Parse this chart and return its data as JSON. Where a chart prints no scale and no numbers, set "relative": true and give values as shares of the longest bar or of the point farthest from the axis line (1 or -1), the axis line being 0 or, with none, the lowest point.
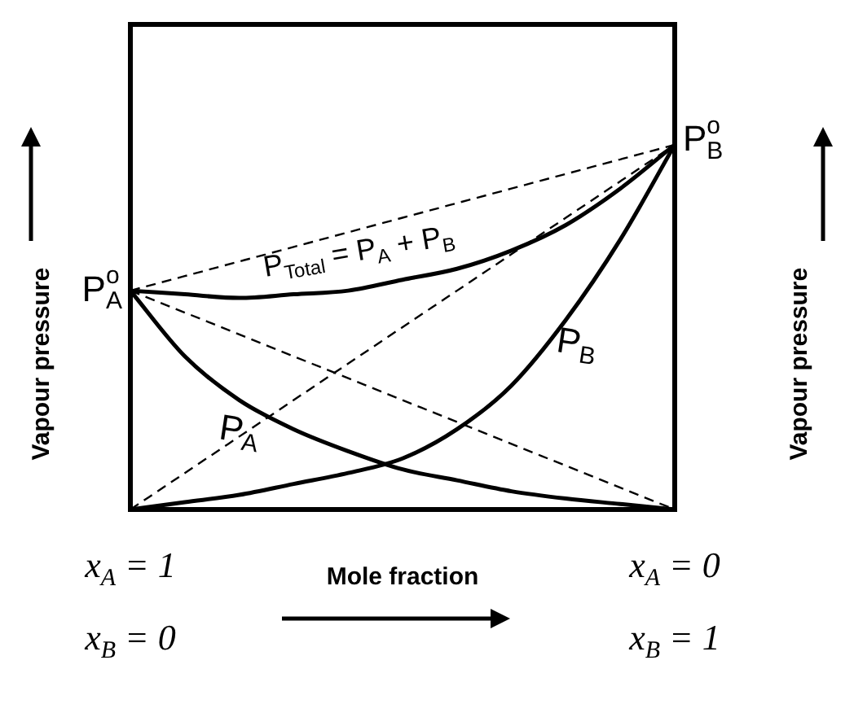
{
  "chart_data": {
    "type": "line",
    "relative": true,
    "xlabel": "Mole fraction",
    "ylabel": "Vapour pressure",
    "y2label": "Vapour pressure",
    "categories": [
      null,
      null,
      null,
      null,
      null,
      null,
      null,
      null,
      null,
      null,
      null
    ],
    "marker": "none",
    "legend": false,
    "series": [
      {
        "color": "#000000",
        "line_style": "solid",
        "values": [
          0.6,
          0.59,
          0.58,
          0.59,
          0.6,
          0.63,
          0.66,
          0.71,
          0.78,
          0.88,
          1
        ]
      },
      {
        "color": "#000000",
        "line_style": "solid",
        "values": [
          0.6,
          0.42,
          0.3,
          0.22,
          0.16,
          0.11,
          0.08,
          0.05,
          0.03,
          0.015,
          0
        ]
      },
      {
        "color": "#000000",
        "line_style": "solid",
        "values": [
          0,
          0.02,
          0.04,
          0.07,
          0.1,
          0.14,
          0.22,
          0.34,
          0.52,
          0.74,
          1
        ]
      },
      {
        "color": "#000000",
        "line_style": "dashed",
        "values": [
          0.6,
          0.64,
          0.68,
          0.72,
          0.76,
          0.8,
          0.84,
          0.88,
          0.92,
          0.96,
          1
        ]
      },
      {
        "color": "#000000",
        "line_style": "dashed",
        "values": [
          0.6,
          0.54,
          0.48,
          0.42,
          0.36,
          0.3,
          0.24,
          0.18,
          0.12,
          0.06,
          0
        ]
      },
      {
        "color": "#000000",
        "line_style": "dashed",
        "values": [
          0,
          0.1,
          0.2,
          0.3,
          0.4,
          0.5,
          0.6,
          0.7,
          0.8,
          0.9,
          1
        ]
      }
    ],
    "annotations": [
      "P$_{Total}$ = P$_{A}$ + P$_{B}$",
      "P$_{A}$",
      "P$_{B}$",
      "P$^{o}$$_{A}$",
      "P$^{o}$$_{B}$",
      "x$_{A}$ = 1",
      "x$_{B}$ = 0",
      "x$_{A}$ = 0",
      "x$_{B}$ = 1"
    ]
  }
}
